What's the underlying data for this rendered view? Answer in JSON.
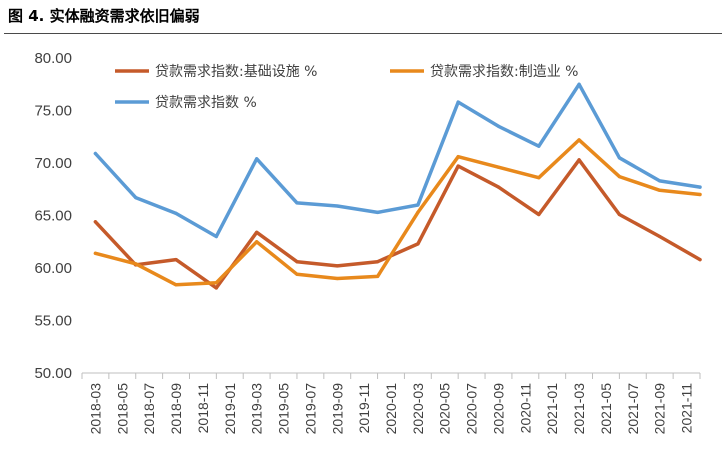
{
  "figure": {
    "title": "图 4. 实体融资需求依旧偏弱"
  },
  "colors": {
    "infrastructure": "#C55A2A",
    "manufacturing": "#E8891C",
    "total": "#5B9BD5",
    "axis": "#BFBFBF"
  },
  "chart_data": {
    "type": "line",
    "title": "",
    "xlabel": "",
    "ylabel": "",
    "ylim": [
      50,
      80
    ],
    "yticks": [
      "50.00",
      "55.00",
      "60.00",
      "65.00",
      "70.00",
      "75.00",
      "80.00"
    ],
    "grid": false,
    "legend_position": "top-left",
    "categories": [
      "2018-03",
      "2018-05",
      "2018-07",
      "2018-09",
      "2018-11",
      "2019-01",
      "2019-03",
      "2019-05",
      "2019-07",
      "2019-09",
      "2019-11",
      "2020-01",
      "2020-03",
      "2020-05",
      "2020-07",
      "2020-09",
      "2020-11",
      "2021-01",
      "2021-03",
      "2021-05",
      "2021-07",
      "2021-09",
      "2021-11"
    ],
    "series": [
      {
        "name": "贷款需求指数:基础设施 %",
        "color_key": "infrastructure",
        "x": [
          "2018-03",
          "2018-06",
          "2018-09",
          "2018-12",
          "2019-03",
          "2019-06",
          "2019-09",
          "2019-12",
          "2020-03",
          "2020-06",
          "2020-09",
          "2020-12",
          "2021-03",
          "2021-06",
          "2021-09",
          "2021-12"
        ],
        "values": [
          64.4,
          60.3,
          60.8,
          58.1,
          63.4,
          60.6,
          60.2,
          60.6,
          62.3,
          69.7,
          67.7,
          65.1,
          70.3,
          65.1,
          63.0,
          60.8
        ]
      },
      {
        "name": "贷款需求指数:制造业 %",
        "color_key": "manufacturing",
        "x": [
          "2018-03",
          "2018-06",
          "2018-09",
          "2018-12",
          "2019-03",
          "2019-06",
          "2019-09",
          "2019-12",
          "2020-03",
          "2020-06",
          "2020-09",
          "2020-12",
          "2021-03",
          "2021-06",
          "2021-09",
          "2021-12"
        ],
        "values": [
          61.4,
          60.4,
          58.4,
          58.6,
          62.5,
          59.4,
          59.0,
          59.2,
          65.3,
          70.6,
          69.6,
          68.6,
          72.2,
          68.7,
          67.4,
          67.0
        ]
      },
      {
        "name": "贷款需求指数 %",
        "color_key": "total",
        "x": [
          "2018-03",
          "2018-06",
          "2018-09",
          "2018-12",
          "2019-03",
          "2019-06",
          "2019-09",
          "2019-12",
          "2020-03",
          "2020-06",
          "2020-09",
          "2020-12",
          "2021-03",
          "2021-06",
          "2021-09",
          "2021-12"
        ],
        "values": [
          70.9,
          66.7,
          65.2,
          63.0,
          70.4,
          66.2,
          65.9,
          65.3,
          66.0,
          75.8,
          73.5,
          71.6,
          77.5,
          70.5,
          68.3,
          67.7
        ]
      }
    ]
  }
}
